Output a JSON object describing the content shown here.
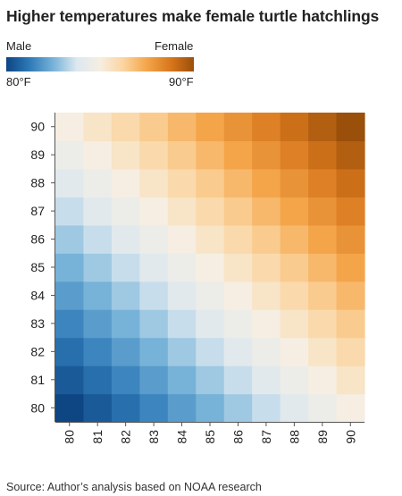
{
  "title": "Higher temperatures make female turtle hatchlings",
  "legend": {
    "min_label": "Male",
    "max_label": "Female",
    "min_tick": "80°F",
    "max_tick": "90°F",
    "colors": [
      "#0e4583",
      "#2e7ab8",
      "#77b2d8",
      "#dce8f0",
      "#f6eee2",
      "#fbd49f",
      "#f4a54a",
      "#d9771c",
      "#9a4f0b"
    ]
  },
  "chart_data": {
    "type": "heatmap",
    "title": "Higher temperatures make female turtle hatchlings",
    "x": [
      "80",
      "81",
      "82",
      "83",
      "84",
      "85",
      "86",
      "87",
      "88",
      "89",
      "90"
    ],
    "y": [
      "80",
      "81",
      "82",
      "83",
      "84",
      "85",
      "86",
      "87",
      "88",
      "89",
      "90"
    ],
    "value_range": [
      0,
      20
    ],
    "values": [
      [
        0,
        1,
        2,
        3,
        4,
        5,
        6,
        7,
        8,
        9,
        10
      ],
      [
        1,
        2,
        3,
        4,
        5,
        6,
        7,
        8,
        9,
        10,
        11
      ],
      [
        2,
        3,
        4,
        5,
        6,
        7,
        8,
        9,
        10,
        11,
        12
      ],
      [
        3,
        4,
        5,
        6,
        7,
        8,
        9,
        10,
        11,
        12,
        13
      ],
      [
        4,
        5,
        6,
        7,
        8,
        9,
        10,
        11,
        12,
        13,
        14
      ],
      [
        5,
        6,
        7,
        8,
        9,
        10,
        11,
        12,
        13,
        14,
        15
      ],
      [
        6,
        7,
        8,
        9,
        10,
        11,
        12,
        13,
        14,
        15,
        16
      ],
      [
        7,
        8,
        9,
        10,
        11,
        12,
        13,
        14,
        15,
        16,
        17
      ],
      [
        8,
        9,
        10,
        11,
        12,
        13,
        14,
        15,
        16,
        17,
        18
      ],
      [
        9,
        10,
        11,
        12,
        13,
        14,
        15,
        16,
        17,
        18,
        19
      ],
      [
        10,
        11,
        12,
        13,
        14,
        15,
        16,
        17,
        18,
        19,
        20
      ]
    ],
    "xlabel": "",
    "ylabel": "",
    "legend_position": "top-left",
    "grid": false
  },
  "source": "Source: Author’s analysis based on NOAA research"
}
